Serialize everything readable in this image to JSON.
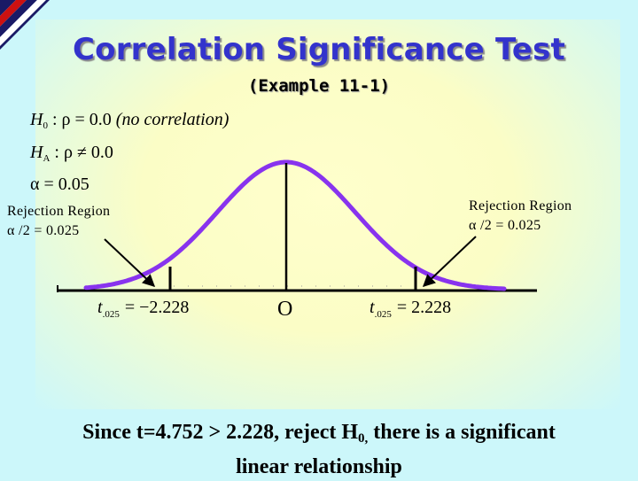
{
  "title": "Correlation Significance Test",
  "subtitle": "(Example 11-1)",
  "hypotheses": {
    "h0": {
      "letter": "H",
      "sub": "0",
      "expr": ": ρ = 0.0",
      "note": "(no correlation)"
    },
    "ha": {
      "letter": "H",
      "sub": "A",
      "expr": ": ρ ≠ 0.0"
    },
    "alpha": {
      "expr": "α = 0.05"
    }
  },
  "rejection_left": {
    "line1": "Rejection Region",
    "line2": "α /2 = 0.025"
  },
  "rejection_right": {
    "line1": "Rejection Region",
    "line2": "α /2 = 0.025"
  },
  "axis": {
    "center_label": "O",
    "left_t": {
      "t": "t",
      "sub": ".025",
      "value": "= −2.228"
    },
    "right_t": {
      "t": "t",
      "sub": ".025",
      "value": "= 2.228"
    }
  },
  "conclusion": {
    "part1": "Since t=4.752 > 2.228, reject H",
    "sub": "0,",
    "part2": " there is a significant",
    "line2": "linear relationship"
  },
  "colors": {
    "title": "#3333cc",
    "curve": "#8833ee",
    "corner_red": "#cc1111",
    "corner_navy": "#1a1a66"
  }
}
